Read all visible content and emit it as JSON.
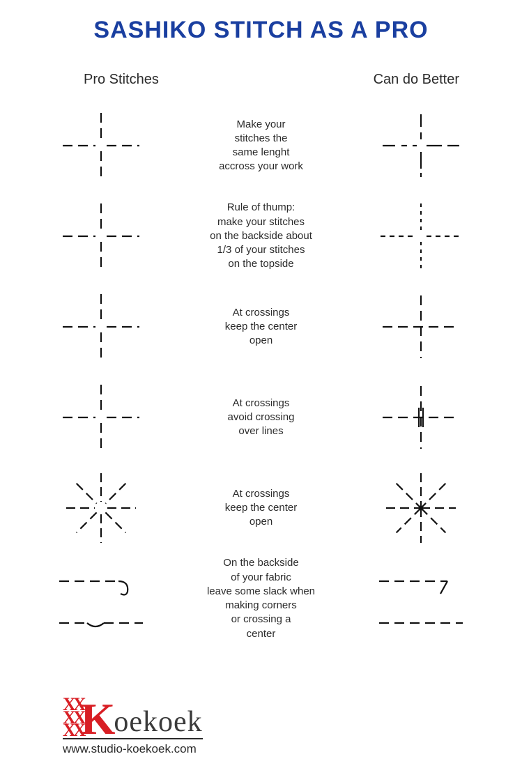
{
  "title": {
    "text": "SASHIKO STITCH AS A PRO",
    "color": "#1a3fa0",
    "fontsize": 34
  },
  "columns": {
    "left": "Pro Stitches",
    "right": "Can do Better",
    "fontsize": 20
  },
  "stroke": {
    "color": "#111111",
    "width": 2.2
  },
  "rows": [
    {
      "desc": "Make your\nstitches the\nsame lenght\naccross your work",
      "left": {
        "type": "cross",
        "dash": "14 8",
        "gap": 8
      },
      "right": {
        "type": "cross-uneven"
      }
    },
    {
      "desc": "Rule of thump:\nmake your stitches\non the backside about\n1/3 of your stitches\non the topside",
      "left": {
        "type": "cross",
        "dash": "14 8",
        "gap": 8
      },
      "right": {
        "type": "cross-smalldash"
      }
    },
    {
      "desc": "At crossings\nkeep the center\nopen",
      "left": {
        "type": "cross",
        "dash": "14 8",
        "gap": 8
      },
      "right": {
        "type": "cross-closed"
      }
    },
    {
      "desc": "At crossings\navoid crossing\nover lines",
      "left": {
        "type": "cross",
        "dash": "14 8",
        "gap": 8
      },
      "right": {
        "type": "cross-overlap"
      }
    },
    {
      "desc": "At crossings\nkeep the center\nopen",
      "left": {
        "type": "star-open"
      },
      "right": {
        "type": "star-closed"
      }
    },
    {
      "desc": "On the backside\nof your fabric\nleave some slack when\nmaking corners\nor crossing a\ncenter",
      "left": {
        "type": "corner-slack"
      },
      "right": {
        "type": "corner-tight"
      }
    }
  ],
  "footer": {
    "logo_xxx_color": "#d81e24",
    "logo_rest_color": "#3a3a3a",
    "brand_k": "K",
    "brand_rest": "oekoek",
    "url": "www.studio-koekoek.com"
  }
}
